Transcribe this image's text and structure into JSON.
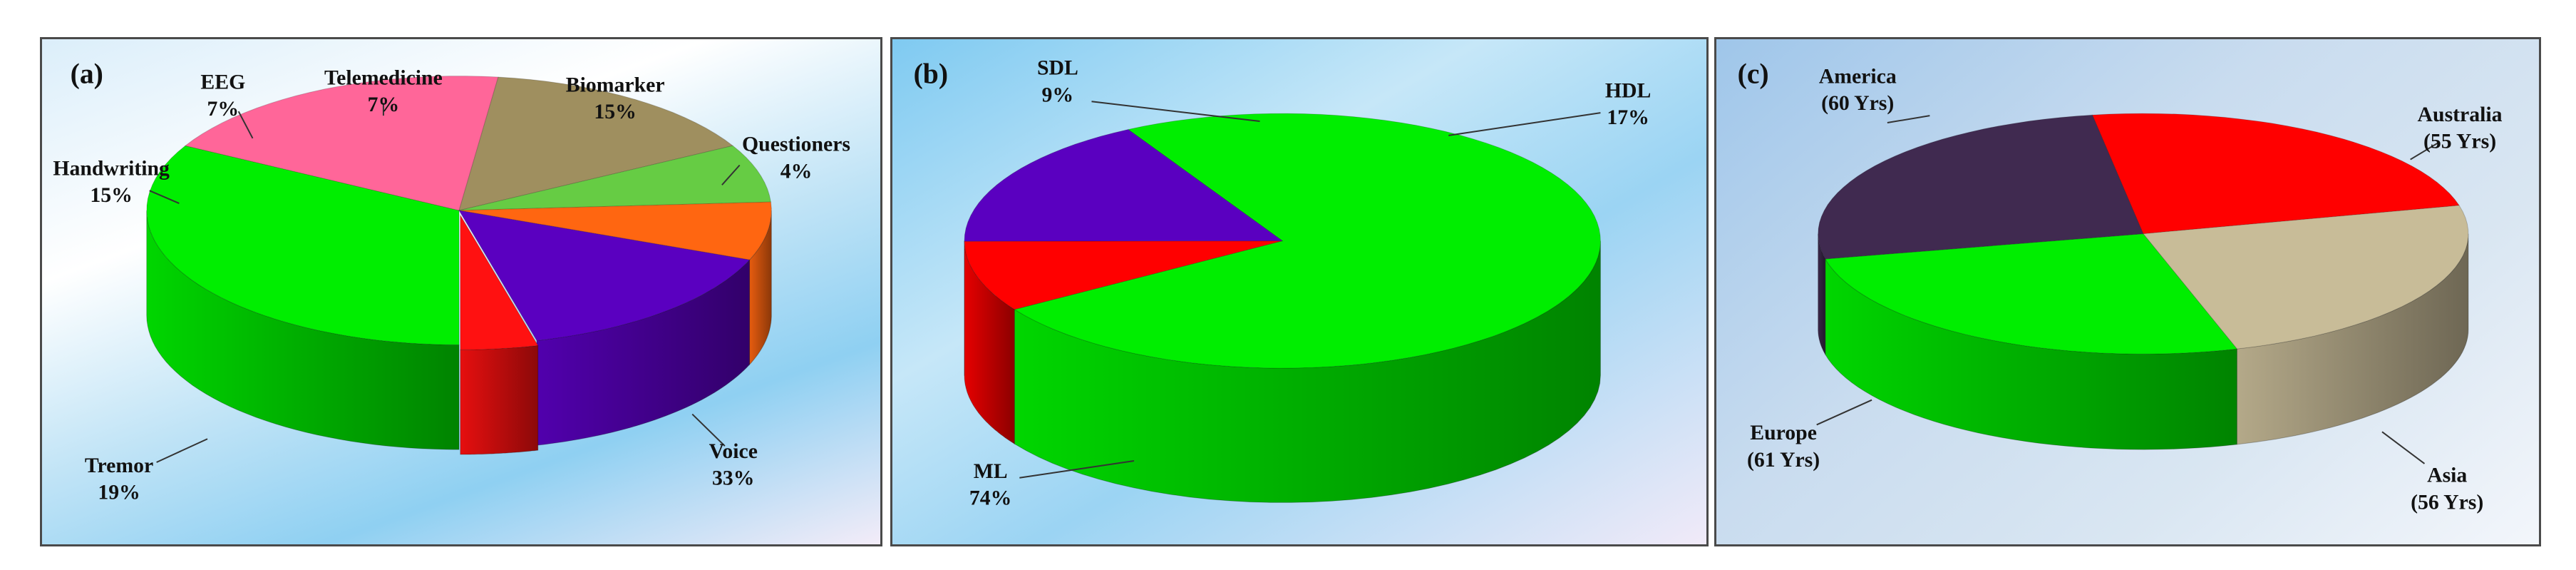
{
  "chart_data": [
    {
      "type": "pie",
      "panel_label": "(a)",
      "slices": [
        {
          "label": "Voice",
          "value": 33,
          "value_text": "33%",
          "color": "#00ee00"
        },
        {
          "label": "Tremor",
          "value": 19,
          "value_text": "19%",
          "color": "#ff6699"
        },
        {
          "label": "Handwriting",
          "value": 15,
          "value_text": "15%",
          "color": "#9f8f5f"
        },
        {
          "label": "EEG",
          "value": 7,
          "value_text": "7%",
          "color": "#66cc44"
        },
        {
          "label": "Telemedicine",
          "value": 7,
          "value_text": "7%",
          "color": "#ff6611"
        },
        {
          "label": "Biomarker",
          "value": 15,
          "value_text": "15%",
          "color": "#5a00c0"
        },
        {
          "label": "Questioners",
          "value": 4,
          "value_text": "4%",
          "color": "#ff1111"
        }
      ]
    },
    {
      "type": "pie",
      "panel_label": "(b)",
      "slices": [
        {
          "label": "ML",
          "value": 74,
          "value_text": "74%",
          "color": "#00ee00"
        },
        {
          "label": "SDL",
          "value": 9,
          "value_text": "9%",
          "color": "#ff0000"
        },
        {
          "label": "HDL",
          "value": 17,
          "value_text": "17%",
          "color": "#5a00c0"
        }
      ]
    },
    {
      "type": "pie",
      "panel_label": "(c)",
      "slices": [
        {
          "label": "Australia",
          "value": 55,
          "value_text": "(55 Yrs)",
          "color": "#ff0000"
        },
        {
          "label": "Asia",
          "value": 56,
          "value_text": "(56 Yrs)",
          "color": "#c8bc98"
        },
        {
          "label": "Europe",
          "value": 61,
          "value_text": "(61 Yrs)",
          "color": "#00ee00"
        },
        {
          "label": "America",
          "value": 60,
          "value_text": "(60 Yrs)",
          "color": "#402a50"
        }
      ]
    }
  ]
}
